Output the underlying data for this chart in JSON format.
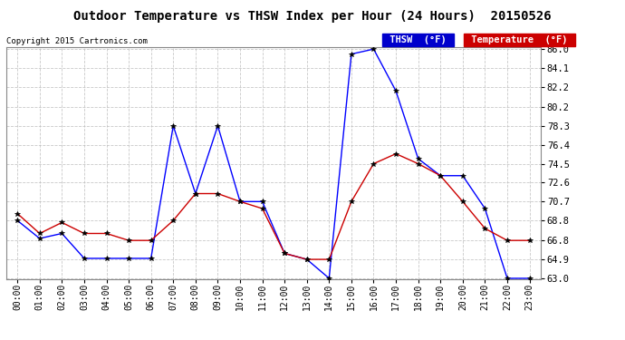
{
  "title": "Outdoor Temperature vs THSW Index per Hour (24 Hours)  20150526",
  "copyright": "Copyright 2015 Cartronics.com",
  "hours": [
    "00:00",
    "01:00",
    "02:00",
    "03:00",
    "04:00",
    "05:00",
    "06:00",
    "07:00",
    "08:00",
    "09:00",
    "10:00",
    "11:00",
    "12:00",
    "13:00",
    "14:00",
    "15:00",
    "16:00",
    "17:00",
    "18:00",
    "19:00",
    "20:00",
    "21:00",
    "22:00",
    "23:00"
  ],
  "thsw": [
    68.8,
    67.0,
    67.5,
    65.0,
    65.0,
    65.0,
    65.0,
    78.3,
    71.5,
    78.3,
    70.7,
    70.7,
    65.5,
    64.9,
    63.0,
    85.5,
    86.0,
    81.8,
    75.0,
    73.3,
    73.3,
    70.0,
    63.0,
    63.0
  ],
  "temperature": [
    69.5,
    67.5,
    68.6,
    67.5,
    67.5,
    66.8,
    66.8,
    68.8,
    71.5,
    71.5,
    70.7,
    70.0,
    65.5,
    64.9,
    64.9,
    70.7,
    74.5,
    75.5,
    74.5,
    73.3,
    70.7,
    68.0,
    66.8,
    66.8
  ],
  "ylim_min": 63.0,
  "ylim_max": 86.0,
  "yticks": [
    63.0,
    64.9,
    66.8,
    68.8,
    70.7,
    72.6,
    74.5,
    76.4,
    78.3,
    80.2,
    82.2,
    84.1,
    86.0
  ],
  "thsw_color": "#0000ff",
  "temp_color": "#cc0000",
  "background_color": "#ffffff",
  "plot_bg_color": "#ffffff",
  "grid_color": "#bbbbbb",
  "title_fontsize": 11,
  "legend_thsw_bg": "#0000cc",
  "legend_temp_bg": "#cc0000"
}
